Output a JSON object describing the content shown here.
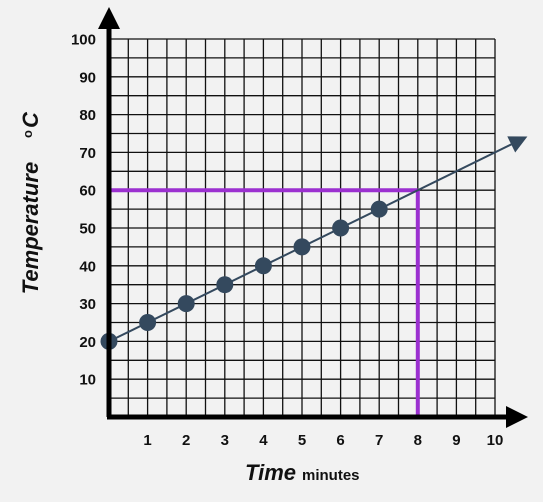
{
  "chart_data": {
    "type": "scatter",
    "title": "",
    "xlabel": "Time",
    "xunit": "minutes",
    "ylabel": "Temperature",
    "yunit_super": "o",
    "yunit": "C",
    "xlim": [
      0,
      10
    ],
    "ylim": [
      0,
      100
    ],
    "x_ticks": [
      "1",
      "2",
      "3",
      "4",
      "5",
      "6",
      "7",
      "8",
      "9",
      "10"
    ],
    "y_ticks": [
      "10",
      "20",
      "30",
      "40",
      "50",
      "60",
      "70",
      "80",
      "90",
      "100"
    ],
    "grid": true,
    "grid_minor_step": 0.5,
    "points": [
      {
        "x": 0,
        "y": 20
      },
      {
        "x": 1,
        "y": 25
      },
      {
        "x": 2,
        "y": 30
      },
      {
        "x": 3,
        "y": 35
      },
      {
        "x": 4,
        "y": 40
      },
      {
        "x": 5,
        "y": 45
      },
      {
        "x": 6,
        "y": 50
      },
      {
        "x": 7,
        "y": 55
      }
    ],
    "trend_line": {
      "from": {
        "x": 0,
        "y": 20
      },
      "to": {
        "x": 10.7,
        "y": 73.5
      }
    },
    "reference_lines": {
      "x": 8,
      "y": 60
    },
    "colors": {
      "background": "#f2f2f2",
      "grid": "#111111",
      "axis": "#000000",
      "points": "#34495e",
      "trend": "#34495e",
      "reference": "#9b30d0"
    }
  }
}
